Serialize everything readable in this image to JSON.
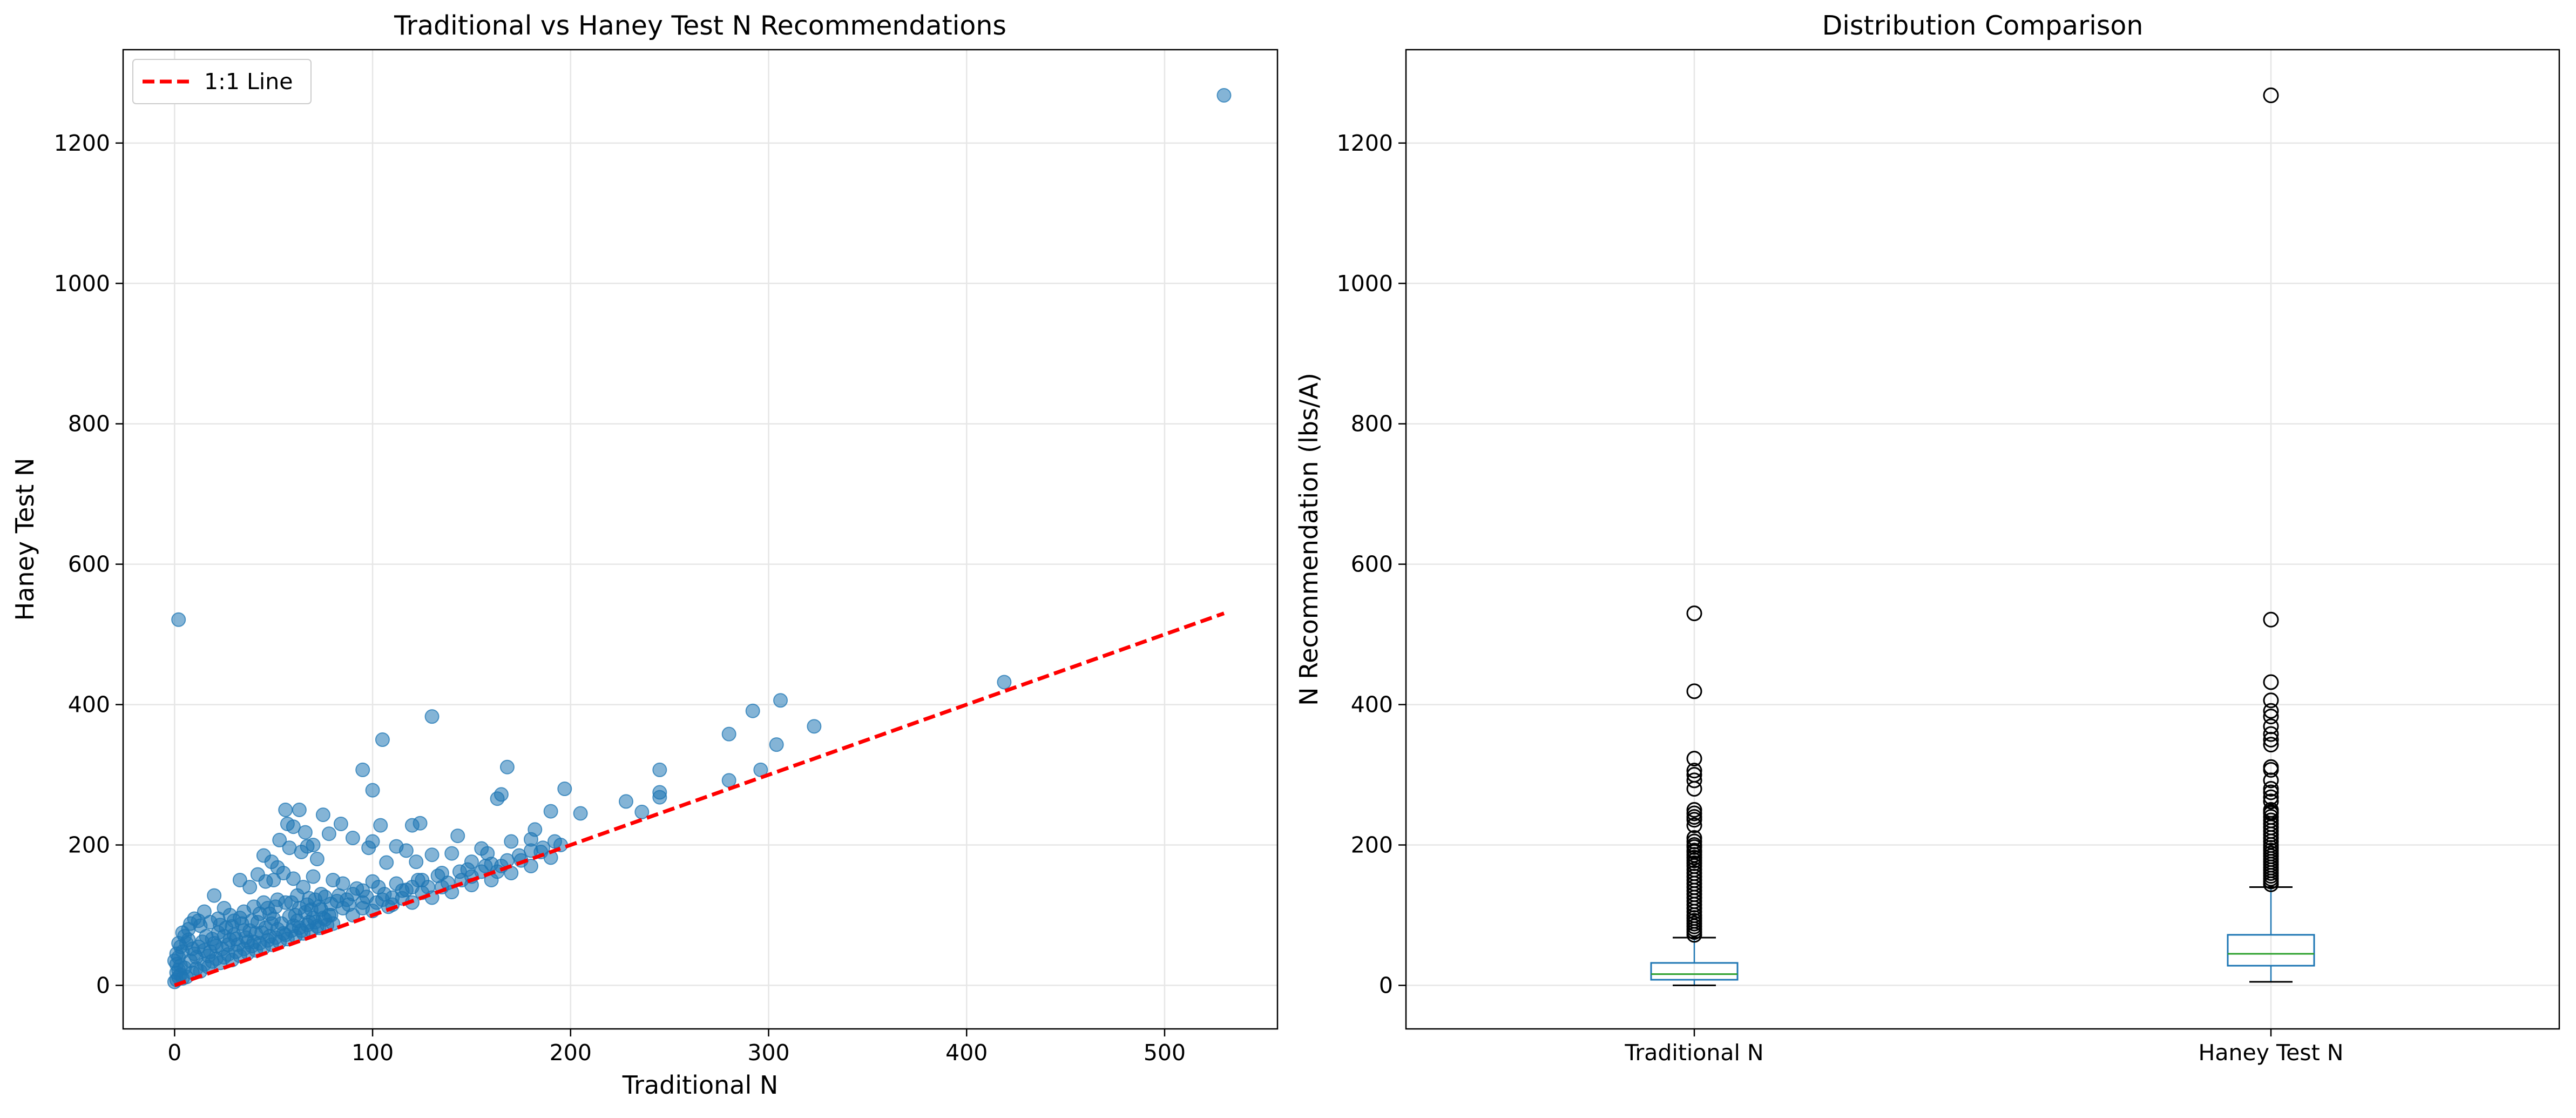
{
  "colors": {
    "scatter_point": "#1f77b4",
    "identity_line": "#ff0000",
    "box_edge": "#1f77b4",
    "box_median": "#2ca02c",
    "whisker": "#000000",
    "grid": "#e6e6e6"
  },
  "chart_data": [
    {
      "type": "scatter",
      "title": "Traditional vs Haney Test N Recommendations",
      "xlabel": "Traditional N",
      "ylabel": "Haney Test N",
      "xlim": [
        -26,
        557
      ],
      "ylim": [
        -62,
        1333
      ],
      "xticks": [
        0,
        100,
        200,
        300,
        400,
        500
      ],
      "yticks": [
        0,
        200,
        400,
        600,
        800,
        1000,
        1200
      ],
      "grid": true,
      "legend_position": "top-left",
      "legend": [
        {
          "label": "1:1 Line",
          "style": "red-dashed-line"
        }
      ],
      "identity_line": {
        "name": "1:1 Line",
        "x": [
          0,
          530
        ],
        "y": [
          0,
          530
        ]
      },
      "points": [
        [
          530,
          1268
        ],
        [
          2,
          521
        ],
        [
          419,
          432
        ],
        [
          306,
          406
        ],
        [
          292,
          391
        ],
        [
          323,
          369
        ],
        [
          280,
          358
        ],
        [
          130,
          383
        ],
        [
          105,
          350
        ],
        [
          95,
          307
        ],
        [
          168,
          311
        ],
        [
          245,
          307
        ],
        [
          296,
          307
        ],
        [
          304,
          343
        ],
        [
          245,
          275
        ],
        [
          245,
          268
        ],
        [
          280,
          292
        ],
        [
          228,
          262
        ],
        [
          236,
          247
        ],
        [
          197,
          280
        ],
        [
          205,
          245
        ],
        [
          190,
          248
        ],
        [
          165,
          272
        ],
        [
          163,
          266
        ],
        [
          170,
          205
        ],
        [
          180,
          208
        ],
        [
          182,
          222
        ],
        [
          120,
          228
        ],
        [
          124,
          231
        ],
        [
          100,
          278
        ],
        [
          104,
          228
        ],
        [
          98,
          196
        ],
        [
          100,
          205
        ],
        [
          107,
          175
        ],
        [
          112,
          198
        ],
        [
          117,
          192
        ],
        [
          122,
          176
        ],
        [
          130,
          186
        ],
        [
          135,
          160
        ],
        [
          140,
          188
        ],
        [
          143,
          213
        ],
        [
          150,
          176
        ],
        [
          155,
          195
        ],
        [
          158,
          188
        ],
        [
          160,
          173
        ],
        [
          148,
          165
        ],
        [
          56,
          250
        ],
        [
          63,
          250
        ],
        [
          57,
          230
        ],
        [
          60,
          226
        ],
        [
          75,
          243
        ],
        [
          78,
          216
        ],
        [
          84,
          230
        ],
        [
          90,
          210
        ],
        [
          66,
          218
        ],
        [
          70,
          200
        ],
        [
          53,
          207
        ],
        [
          58,
          196
        ],
        [
          64,
          190
        ],
        [
          67,
          198
        ],
        [
          72,
          180
        ],
        [
          45,
          185
        ],
        [
          49,
          176
        ],
        [
          52,
          168
        ],
        [
          33,
          150
        ],
        [
          38,
          140
        ],
        [
          42,
          158
        ],
        [
          46,
          148
        ],
        [
          50,
          150
        ],
        [
          55,
          160
        ],
        [
          60,
          152
        ],
        [
          65,
          140
        ],
        [
          70,
          155
        ],
        [
          80,
          150
        ],
        [
          85,
          145
        ],
        [
          90,
          130
        ],
        [
          95,
          135
        ],
        [
          100,
          148
        ],
        [
          110,
          125
        ],
        [
          115,
          135
        ],
        [
          120,
          140
        ],
        [
          125,
          150
        ],
        [
          20,
          128
        ],
        [
          25,
          110
        ],
        [
          15,
          105
        ],
        [
          10,
          95
        ],
        [
          8,
          88
        ],
        [
          12,
          92
        ],
        [
          18,
          90
        ],
        [
          22,
          95
        ],
        [
          28,
          100
        ],
        [
          30,
          92
        ],
        [
          35,
          105
        ],
        [
          40,
          112
        ],
        [
          45,
          118
        ],
        [
          48,
          102
        ],
        [
          52,
          122
        ],
        [
          56,
          118
        ],
        [
          62,
          128
        ],
        [
          68,
          124
        ],
        [
          74,
          130
        ],
        [
          82,
          120
        ],
        [
          88,
          115
        ],
        [
          95,
          110
        ],
        [
          102,
          118
        ],
        [
          108,
          112
        ],
        [
          5,
          70
        ],
        [
          7,
          80
        ],
        [
          3,
          55
        ],
        [
          2,
          40
        ],
        [
          4,
          48
        ],
        [
          6,
          60
        ],
        [
          1,
          30
        ],
        [
          2,
          22
        ],
        [
          3,
          15
        ],
        [
          5,
          25
        ],
        [
          8,
          35
        ],
        [
          10,
          45
        ],
        [
          12,
          55
        ],
        [
          14,
          62
        ],
        [
          16,
          70
        ],
        [
          18,
          48
        ],
        [
          20,
          60
        ],
        [
          22,
          75
        ],
        [
          24,
          52
        ],
        [
          26,
          82
        ],
        [
          28,
          65
        ],
        [
          30,
          72
        ],
        [
          32,
          58
        ],
        [
          34,
          88
        ],
        [
          36,
          68
        ],
        [
          38,
          78
        ],
        [
          40,
          62
        ],
        [
          42,
          90
        ],
        [
          44,
          75
        ],
        [
          46,
          82
        ],
        [
          48,
          70
        ],
        [
          50,
          95
        ],
        [
          52,
          80
        ],
        [
          54,
          88
        ],
        [
          56,
          72
        ],
        [
          58,
          98
        ],
        [
          60,
          85
        ],
        [
          62,
          92
        ],
        [
          64,
          78
        ],
        [
          66,
          104
        ],
        [
          68,
          90
        ],
        [
          70,
          96
        ],
        [
          72,
          84
        ],
        [
          74,
          108
        ],
        [
          76,
          94
        ],
        [
          78,
          100
        ],
        [
          80,
          88
        ],
        [
          85,
          110
        ],
        [
          90,
          100
        ],
        [
          95,
          118
        ],
        [
          100,
          106
        ],
        [
          105,
          122
        ],
        [
          110,
          115
        ],
        [
          115,
          124
        ],
        [
          120,
          118
        ],
        [
          125,
          132
        ],
        [
          130,
          125
        ],
        [
          135,
          140
        ],
        [
          140,
          133
        ],
        [
          145,
          150
        ],
        [
          150,
          143
        ],
        [
          155,
          162
        ],
        [
          160,
          150
        ],
        [
          165,
          170
        ],
        [
          170,
          160
        ],
        [
          175,
          178
        ],
        [
          180,
          170
        ],
        [
          185,
          190
        ],
        [
          190,
          182
        ],
        [
          195,
          200
        ],
        [
          6,
          12
        ],
        [
          9,
          18
        ],
        [
          11,
          24
        ],
        [
          13,
          20
        ],
        [
          15,
          30
        ],
        [
          17,
          26
        ],
        [
          19,
          34
        ],
        [
          21,
          38
        ],
        [
          23,
          32
        ],
        [
          25,
          40
        ],
        [
          27,
          44
        ],
        [
          29,
          36
        ],
        [
          31,
          48
        ],
        [
          33,
          42
        ],
        [
          35,
          52
        ],
        [
          37,
          46
        ],
        [
          39,
          56
        ],
        [
          41,
          50
        ],
        [
          43,
          60
        ],
        [
          45,
          54
        ],
        [
          47,
          64
        ],
        [
          49,
          58
        ],
        [
          51,
          68
        ],
        [
          53,
          62
        ],
        [
          55,
          74
        ],
        [
          57,
          66
        ],
        [
          59,
          78
        ],
        [
          61,
          70
        ],
        [
          63,
          82
        ],
        [
          65,
          74
        ],
        [
          67,
          86
        ],
        [
          69,
          78
        ],
        [
          71,
          90
        ],
        [
          73,
          82
        ],
        [
          75,
          96
        ],
        [
          77,
          86
        ],
        [
          79,
          100
        ],
        [
          1,
          8
        ],
        [
          2,
          12
        ],
        [
          4,
          10
        ],
        [
          0,
          5
        ],
        [
          1,
          18
        ],
        [
          3,
          28
        ],
        [
          0,
          35
        ],
        [
          1,
          45
        ],
        [
          2,
          60
        ],
        [
          4,
          75
        ],
        [
          7,
          65
        ],
        [
          9,
          52
        ],
        [
          11,
          40
        ],
        [
          13,
          85
        ],
        [
          15,
          50
        ],
        [
          17,
          42
        ],
        [
          19,
          66
        ],
        [
          21,
          56
        ],
        [
          23,
          86
        ],
        [
          25,
          70
        ],
        [
          27,
          58
        ],
        [
          29,
          84
        ],
        [
          31,
          66
        ],
        [
          33,
          96
        ],
        [
          35,
          78
        ],
        [
          37,
          62
        ],
        [
          39,
          92
        ],
        [
          41,
          74
        ],
        [
          43,
          102
        ],
        [
          47,
          110
        ],
        [
          49,
          88
        ],
        [
          51,
          112
        ],
        [
          59,
          118
        ],
        [
          61,
          100
        ],
        [
          63,
          110
        ],
        [
          67,
          115
        ],
        [
          69,
          108
        ],
        [
          71,
          122
        ],
        [
          73,
          112
        ],
        [
          76,
          126
        ],
        [
          79,
          116
        ],
        [
          83,
          128
        ],
        [
          87,
          122
        ],
        [
          92,
          138
        ],
        [
          97,
          126
        ],
        [
          103,
          140
        ],
        [
          106,
          130
        ],
        [
          112,
          145
        ],
        [
          117,
          136
        ],
        [
          123,
          150
        ],
        [
          128,
          140
        ],
        [
          133,
          156
        ],
        [
          138,
          146
        ],
        [
          144,
          162
        ],
        [
          150,
          155
        ],
        [
          157,
          170
        ],
        [
          163,
          162
        ],
        [
          168,
          178
        ],
        [
          174,
          185
        ],
        [
          180,
          192
        ],
        [
          186,
          196
        ],
        [
          192,
          205
        ]
      ]
    },
    {
      "type": "box",
      "title": "Distribution Comparison",
      "xlabel": "",
      "ylabel": "N Recommendation (lbs/A)",
      "ylim": [
        -62,
        1333
      ],
      "yticks": [
        0,
        200,
        400,
        600,
        800,
        1000,
        1200
      ],
      "categories": [
        "Traditional N",
        "Haney Test N"
      ],
      "grid": true,
      "boxes": [
        {
          "name": "Traditional N",
          "whisker_low": 0,
          "q1": 8,
          "median": 16,
          "q3": 32,
          "whisker_high": 68,
          "outliers": [
            530,
            419,
            323,
            306,
            300,
            292,
            280,
            250,
            245,
            240,
            236,
            228,
            210,
            205,
            200,
            197,
            192,
            190,
            186,
            182,
            178,
            174,
            170,
            165,
            160,
            155,
            150,
            145,
            140,
            135,
            130,
            125,
            120,
            115,
            110,
            105,
            100,
            96,
            92,
            88,
            84,
            80,
            76,
            72
          ]
        },
        {
          "name": "Haney Test N",
          "whisker_low": 5,
          "q1": 28,
          "median": 45,
          "q3": 72,
          "whisker_high": 140,
          "outliers": [
            1268,
            521,
            432,
            406,
            391,
            383,
            369,
            358,
            350,
            343,
            311,
            307,
            292,
            280,
            275,
            268,
            262,
            250,
            247,
            245,
            240,
            235,
            230,
            225,
            220,
            215,
            210,
            205,
            200,
            196,
            192,
            188,
            184,
            180,
            176,
            172,
            168,
            164,
            160,
            156,
            152,
            148,
            144
          ]
        }
      ]
    }
  ]
}
